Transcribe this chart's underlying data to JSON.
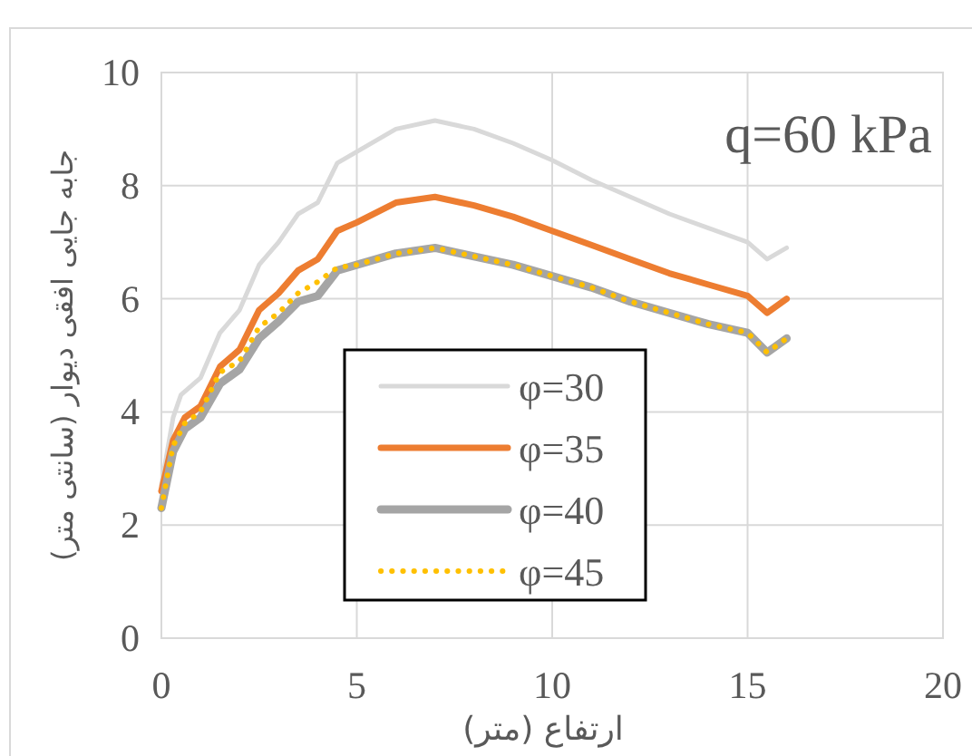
{
  "chart_data": {
    "type": "line",
    "xlabel": "ارتفاع (متر)",
    "ylabel": "جابه جایی افقی دیوار (سانتی متر)",
    "annotations": [
      "q=60 kPa"
    ],
    "xlim": [
      0,
      20
    ],
    "ylim": [
      0,
      10
    ],
    "xticks": [
      0,
      5,
      10,
      15,
      20
    ],
    "yticks": [
      0,
      2,
      4,
      6,
      8,
      10
    ],
    "grid": true,
    "legend": "bottom",
    "marker": "none",
    "series": [
      {
        "name": "φ=30",
        "color": "#d9d9d9",
        "x": [
          0,
          0.3,
          0.5,
          1,
          1.5,
          2,
          2.5,
          3,
          3.5,
          4,
          4.5,
          5,
          6,
          7,
          8,
          9,
          10,
          11,
          12,
          13,
          14,
          15,
          15.5,
          16
        ],
        "values": [
          2.7,
          3.9,
          4.3,
          4.6,
          5.4,
          5.8,
          6.6,
          7.0,
          7.5,
          7.7,
          8.4,
          8.6,
          9.0,
          9.15,
          9.0,
          8.75,
          8.45,
          8.1,
          7.8,
          7.5,
          7.25,
          7.0,
          6.7,
          6.9
        ]
      },
      {
        "name": "φ=35",
        "color": "#ed7d31",
        "x": [
          0,
          0.3,
          0.6,
          1,
          1.5,
          2,
          2.5,
          3,
          3.5,
          4,
          4.5,
          5,
          6,
          7,
          8,
          9,
          10,
          11,
          12,
          13,
          14,
          15,
          15.5,
          16
        ],
        "values": [
          2.6,
          3.5,
          3.9,
          4.1,
          4.8,
          5.1,
          5.8,
          6.1,
          6.5,
          6.7,
          7.2,
          7.35,
          7.7,
          7.8,
          7.65,
          7.45,
          7.2,
          6.95,
          6.7,
          6.45,
          6.25,
          6.05,
          5.75,
          6.0
        ]
      },
      {
        "name": "φ=40",
        "color": "#a5a5a5",
        "x": [
          0,
          0.3,
          0.6,
          1,
          1.5,
          2,
          2.5,
          3,
          3.5,
          4,
          4.5,
          5,
          6,
          7,
          8,
          9,
          10,
          11,
          12,
          13,
          14,
          15,
          15.5,
          16
        ],
        "values": [
          2.3,
          3.3,
          3.7,
          3.9,
          4.5,
          4.75,
          5.3,
          5.6,
          5.95,
          6.05,
          6.5,
          6.6,
          6.8,
          6.9,
          6.75,
          6.6,
          6.4,
          6.2,
          5.95,
          5.75,
          5.55,
          5.4,
          5.05,
          5.3
        ]
      },
      {
        "name": "φ=45",
        "color": "#ffc000",
        "line_style": "dotted",
        "x": [
          0,
          0.3,
          0.6,
          1,
          1.5,
          2,
          2.5,
          3,
          3.5,
          4,
          4.5,
          5,
          6,
          7,
          8,
          9,
          10,
          11,
          12,
          13,
          14,
          15,
          15.5,
          16
        ],
        "values": [
          2.3,
          3.4,
          3.8,
          4.0,
          4.7,
          4.9,
          5.5,
          5.75,
          6.1,
          6.3,
          6.55,
          6.6,
          6.8,
          6.9,
          6.75,
          6.6,
          6.4,
          6.2,
          5.95,
          5.75,
          5.55,
          5.4,
          5.05,
          5.3
        ]
      }
    ]
  }
}
